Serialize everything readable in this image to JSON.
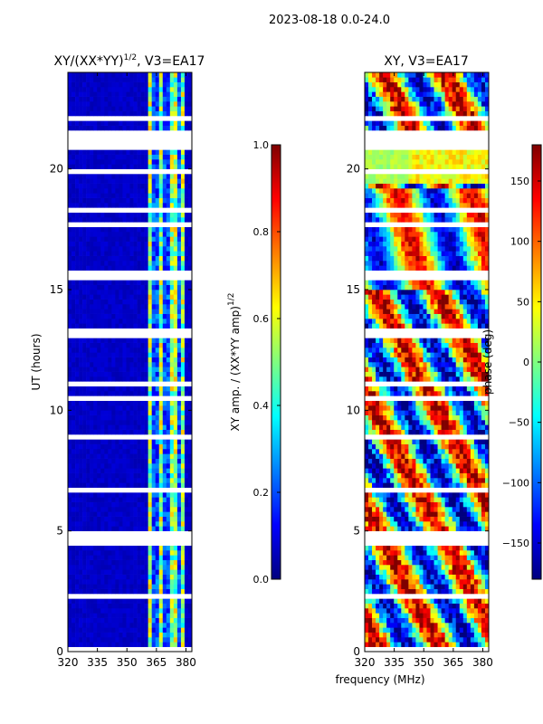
{
  "figure_title": "2023-08-18 0.0-24.0",
  "shared_xlabel": "frequency (MHz)",
  "colors": {
    "jet": [
      "#00007f",
      "#0000ff",
      "#007fff",
      "#00ffff",
      "#7fff7f",
      "#ffff00",
      "#ff7f00",
      "#ff0000",
      "#7f0000"
    ],
    "gap": "#ffffff"
  },
  "chart_data": [
    {
      "type": "heatmap",
      "title": "XY/(XX*YY)^{1/2}, V3=EA17",
      "title_main": "XY/(XX*YY)",
      "title_sup": "1/2",
      "title_tail": ", V3=EA17",
      "xlabel": "",
      "ylabel": "UT (hours)",
      "xlim": [
        320,
        383
      ],
      "ylim": [
        0,
        24
      ],
      "xticks": [
        320,
        335,
        350,
        365,
        380
      ],
      "xtick_labels": [
        "320",
        "335",
        "350",
        "365",
        "380"
      ],
      "yticks": [
        0,
        5,
        10,
        15,
        20
      ],
      "ytick_labels": [
        "0",
        "5",
        "10",
        "15",
        "20"
      ],
      "colorbar": {
        "label_main": "XY amp. / (XX*YY amp)",
        "label_sup": "1/2",
        "range": [
          0.0,
          1.0
        ],
        "ticks": [
          0.0,
          0.2,
          0.4,
          0.6,
          0.8,
          1.0
        ],
        "tick_labels": [
          "0.0",
          "0.2",
          "0.4",
          "0.6",
          "0.8",
          "1.0"
        ]
      },
      "hot_band_mhz": [
        360,
        380
      ],
      "background_value": 0.05
    },
    {
      "type": "heatmap",
      "title": "XY, V3=EA17",
      "xlabel": "frequency (MHz)",
      "ylabel": "",
      "xlim": [
        320,
        383
      ],
      "ylim": [
        0,
        24
      ],
      "xticks": [
        320,
        335,
        350,
        365,
        380
      ],
      "xtick_labels": [
        "320",
        "335",
        "350",
        "365",
        "380"
      ],
      "yticks": [
        0,
        5,
        10,
        15,
        20
      ],
      "ytick_labels": [
        "0",
        "5",
        "10",
        "15",
        "20"
      ],
      "colorbar": {
        "label_main": "phase (deg)",
        "range": [
          -180,
          180
        ],
        "ticks": [
          -150,
          -100,
          -50,
          0,
          50,
          100,
          150
        ],
        "tick_labels": [
          "−150",
          "−100",
          "−50",
          "0",
          "50",
          "100",
          "150"
        ]
      },
      "value_range_deg": [
        -180,
        180
      ]
    }
  ]
}
